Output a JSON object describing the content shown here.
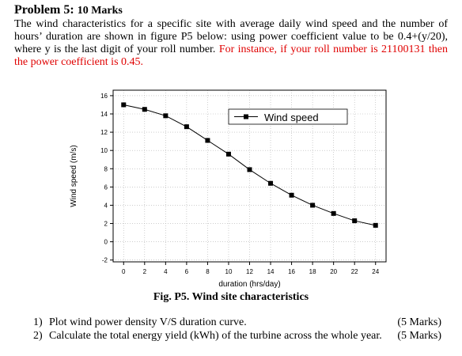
{
  "problem": {
    "title": "Problem 5:",
    "marks": "10 Marks",
    "text_black": "The wind characteristics for a specific site with average daily wind speed and the number of hours’ duration are shown in figure P5 below: using power coefficient value to be 0.4+(y/20), where y is the last digit of your roll number.",
    "text_red": "For instance, if your roll number is 21100131 then the power coefficient is 0.45."
  },
  "figure": {
    "caption": "Fig. P5. Wind site characteristics"
  },
  "chart_data": {
    "type": "line",
    "x": [
      0,
      2,
      4,
      6,
      8,
      10,
      12,
      14,
      16,
      18,
      20,
      22,
      24
    ],
    "series": [
      {
        "name": "Wind speed",
        "values": [
          15.0,
          14.5,
          13.8,
          12.6,
          11.1,
          9.6,
          7.9,
          6.4,
          5.1,
          4.0,
          3.1,
          2.3,
          1.8
        ],
        "color": "#000000",
        "marker": "square"
      }
    ],
    "xlabel": "duration (hrs/day)",
    "ylabel": "Wind speed (m/s)",
    "xticks": [
      0,
      2,
      4,
      6,
      8,
      10,
      12,
      14,
      16,
      18,
      20,
      22,
      24
    ],
    "yticks": [
      -2,
      0,
      2,
      4,
      6,
      8,
      10,
      12,
      14,
      16
    ],
    "xlim": [
      -1,
      25
    ],
    "ylim": [
      -2.2,
      16.6
    ],
    "grid": true,
    "legend": "top-right"
  },
  "questions": [
    {
      "num": "1)",
      "text": "Plot wind power density V/S duration curve.",
      "marks": "(5 Marks)"
    },
    {
      "num": "2)",
      "text": "Calculate the total energy yield (kWh) of the turbine across the whole year.",
      "marks": "(5 Marks)"
    }
  ]
}
